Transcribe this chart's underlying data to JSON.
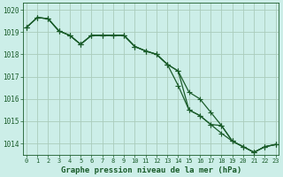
{
  "title": "Graphe pression niveau de la mer (hPa)",
  "background_color": "#cceee8",
  "plot_bg_color": "#cceee8",
  "grid_color": "#aaccbb",
  "line_color": "#1a5c2a",
  "marker_color": "#1a5c2a",
  "x_values": [
    0,
    1,
    2,
    3,
    4,
    5,
    6,
    7,
    8,
    9,
    10,
    11,
    12,
    13,
    14,
    15,
    16,
    17,
    18,
    19,
    20,
    21,
    22,
    23
  ],
  "series1": [
    1019.2,
    1019.65,
    1019.6,
    1019.05,
    1018.85,
    1018.45,
    1018.85,
    1018.85,
    1018.85,
    1018.85,
    1018.35,
    1018.15,
    1018.0,
    1017.55,
    1016.6,
    1015.5,
    1015.25,
    1014.85,
    1014.45,
    1014.1,
    1013.85,
    1013.6,
    1013.85,
    1013.95
  ],
  "series2": [
    1019.2,
    1019.65,
    1019.6,
    1019.05,
    1018.85,
    1018.45,
    1018.85,
    1018.85,
    1018.85,
    1018.85,
    1018.35,
    1018.15,
    1018.0,
    1017.55,
    1017.25,
    1016.3,
    1016.0,
    1015.4,
    1014.8,
    1014.1,
    1013.85,
    1013.6,
    1013.85,
    1013.95
  ],
  "series3": [
    1019.2,
    1019.65,
    1019.6,
    1019.05,
    1018.85,
    1018.45,
    1018.85,
    1018.85,
    1018.85,
    1018.85,
    1018.35,
    1018.15,
    1018.0,
    1017.55,
    1017.25,
    1015.5,
    1015.25,
    1014.85,
    1014.8,
    1014.1,
    1013.85,
    1013.6,
    1013.85,
    1013.95
  ],
  "ylim": [
    1013.5,
    1020.3
  ],
  "xlim": [
    -0.3,
    23.3
  ],
  "yticks": [
    1014,
    1015,
    1016,
    1017,
    1018,
    1019,
    1020
  ],
  "xticks": [
    0,
    1,
    2,
    3,
    4,
    5,
    6,
    7,
    8,
    9,
    10,
    11,
    12,
    13,
    14,
    15,
    16,
    17,
    18,
    19,
    20,
    21,
    22,
    23
  ]
}
